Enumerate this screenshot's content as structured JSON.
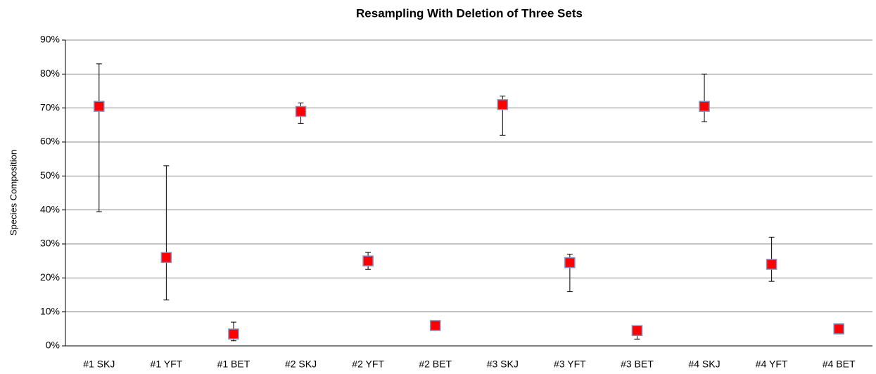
{
  "chart_data": {
    "type": "errorbar",
    "title": "Resampling With Deletion of Three Sets",
    "y_label": "Species Composition",
    "categories": [
      "#1 SKJ",
      "#1 YFT",
      "#1 BET",
      "#2 SKJ",
      "#2 YFT",
      "#2 BET",
      "#3 SKJ",
      "#3 YFT",
      "#3 BET",
      "#4 SKJ",
      "#4 YFT",
      "#4 BET"
    ],
    "series": [
      {
        "color": "#ff0000",
        "values": [
          70.5,
          26,
          3.5,
          69,
          25,
          6,
          71,
          24.5,
          4.5,
          70.5,
          24,
          5
        ],
        "high": [
          83,
          53,
          7,
          71.5,
          27.5,
          6.5,
          73.5,
          27,
          5.5,
          80,
          32,
          6.5
        ],
        "low": [
          39.5,
          13.5,
          1.5,
          65.5,
          22.5,
          5.5,
          62,
          16,
          2,
          66,
          19,
          3.5
        ]
      }
    ],
    "ylim": [
      0,
      90
    ],
    "yticks": [
      {
        "value": 0,
        "label": "0%"
      },
      {
        "value": 10,
        "label": "10%"
      },
      {
        "value": 20,
        "label": "20%"
      },
      {
        "value": 30,
        "label": "30%"
      },
      {
        "value": 40,
        "label": "40%"
      },
      {
        "value": 50,
        "label": "50%"
      },
      {
        "value": 60,
        "label": "60%"
      },
      {
        "value": 70,
        "label": "70%"
      },
      {
        "value": 80,
        "label": "80%"
      },
      {
        "value": 90,
        "label": "90%"
      }
    ],
    "grid": true
  }
}
